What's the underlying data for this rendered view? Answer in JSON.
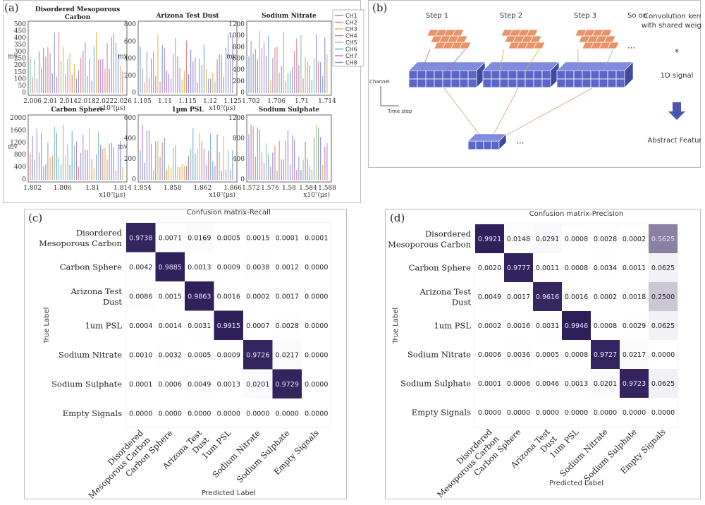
{
  "panels": {
    "a": "(a)",
    "b": "(b)",
    "c": "(c)",
    "d": "(d)"
  },
  "waveforms": {
    "legend": [
      "CH1",
      "CH2",
      "CH3",
      "CH4",
      "CH5",
      "CH6",
      "CH7",
      "CH8"
    ],
    "colors": [
      "#7f7fd6",
      "#e07b7b",
      "#e0b040",
      "#b07ac0",
      "#7ac0a0",
      "#60a0d0",
      "#c070c0",
      "#9090c0"
    ],
    "plots": [
      {
        "title": "Disordered Mesoporous Carbon",
        "ylabel": "mv",
        "yticks": [
          "500",
          "450",
          "400",
          "350",
          "300",
          "250",
          "200",
          "150",
          "100",
          "50",
          "0"
        ],
        "xticks": [
          "2.006",
          "2.01",
          "2.014",
          "2.018",
          "2.022",
          "2.026"
        ],
        "xunit": "x10⁷(µs)"
      },
      {
        "title": "Arizona Test Dust",
        "ylabel": "mv",
        "yticks": [
          "800",
          "600",
          "400",
          "200",
          "0"
        ],
        "xticks": [
          "1.105",
          "1.11",
          "1.115",
          "1.12",
          "1.125"
        ],
        "xunit": "x10⁷(µs)"
      },
      {
        "title": "Sodium Nitrate",
        "ylabel": "mv",
        "yticks": [
          "1200",
          "1000",
          "800",
          "600",
          "400",
          "200",
          "0"
        ],
        "xticks": [
          "1.702",
          "1.706",
          "1.71",
          "1.714"
        ],
        "xunit": ""
      },
      {
        "title": "Carbon Sphere",
        "ylabel": "mv",
        "yticks": [
          "2000",
          "1600",
          "1200",
          "800",
          "400",
          "0"
        ],
        "xticks": [
          "1.802",
          "1.806",
          "1.81",
          "1.814"
        ],
        "xunit": "x10⁷(µs)"
      },
      {
        "title": "1µm PSL",
        "ylabel": "mv",
        "yticks": [
          "600",
          "400",
          "200",
          "0"
        ],
        "xticks": [
          "1.854",
          "1.858",
          "1.862",
          "1.866"
        ],
        "xunit": "x10⁷(µs)"
      },
      {
        "title": "Sodium Sulphate",
        "ylabel": "",
        "yticks": [
          "1200",
          "800",
          "400",
          "0"
        ],
        "xticks": [
          "1.572",
          "1.576",
          "1.58",
          "1.584",
          "1.588"
        ],
        "xunit": "x10⁷(µs)"
      }
    ]
  },
  "cnn": {
    "steps": [
      "Step 1",
      "Step 2",
      "Step 3"
    ],
    "so_on": "So on",
    "dots": "···",
    "star": "*",
    "kernel_label": "Convolution kernel\nwith shared weights",
    "signal_label": "1D signal",
    "abstract_label": "Abstract Feature",
    "channel_label": "Channel",
    "time_label": "Time step"
  },
  "chart_data": [
    {
      "type": "heatmap",
      "title": "Confusion matrix-Recall",
      "xlabel": "Predicted Label",
      "ylabel": "True Label",
      "row_labels": [
        "Disordered\nMesoporous Carbon",
        "Carbon Sphere",
        "Arizona Test\nDust",
        "1um PSL",
        "Sodium Nitrate",
        "Sodium Sulphate",
        "Empty Signals"
      ],
      "col_labels": [
        "Disordered\nMesoporous Carbon",
        "Carbon Sphere",
        "Arizona Test\nDust",
        "1um PSL",
        "Sodium Nitrate",
        "Sodium Sulphate",
        "Empty Signals"
      ],
      "values": [
        [
          "0.9738",
          "0.0071",
          "0.0169",
          "0.0005",
          "0.0015",
          "0.0001",
          "0.0001"
        ],
        [
          "0.0042",
          "0.9885",
          "0.0013",
          "0.0009",
          "0.0038",
          "0.0012",
          "0.0000"
        ],
        [
          "0.0086",
          "0.0015",
          "0.9863",
          "0.0016",
          "0.0002",
          "0.0017",
          "0.0000"
        ],
        [
          "0.0004",
          "0.0014",
          "0.0031",
          "0.9915",
          "0.0007",
          "0.0028",
          "0.0000"
        ],
        [
          "0.0010",
          "0.0032",
          "0.0005",
          "0.0009",
          "0.9726",
          "0.0217",
          "0.0000"
        ],
        [
          "0.0001",
          "0.0006",
          "0.0049",
          "0.0013",
          "0.0201",
          "0.9729",
          "0.0000"
        ],
        [
          "0.0000",
          "0.0000",
          "0.0000",
          "0.0000",
          "0.0000",
          "0.0000",
          "0.0000"
        ]
      ]
    },
    {
      "type": "heatmap",
      "title": "Confusion matrix-Precision",
      "xlabel": "Predicted Label",
      "ylabel": "True Label",
      "row_labels": [
        "Disordered\nMesoporous Carbon",
        "Carbon Sphere",
        "Arizona Test\nDust",
        "1um PSL",
        "Sodium Nitrate",
        "Sodium Sulphate",
        "Empty Signals"
      ],
      "col_labels": [
        "Disordered\nMesoporous Carbon",
        "Carbon Sphere",
        "Arizona Test\nDust",
        "1um PSL",
        "Sodium Nitrate",
        "Sodium Sulphate",
        "Empty Signals"
      ],
      "values": [
        [
          "0.9921",
          "0.0148",
          "0.0291",
          "0.0008",
          "0.0028",
          "0.0002",
          "0.5625"
        ],
        [
          "0.0020",
          "0.9777",
          "0.0011",
          "0.0008",
          "0.0034",
          "0.0011",
          "0.0625"
        ],
        [
          "0.0049",
          "0.0017",
          "0.9616",
          "0.0016",
          "0.0002",
          "0.0018",
          "0.2500"
        ],
        [
          "0.0002",
          "0.0016",
          "0.0031",
          "0.9946",
          "0.0008",
          "0.0029",
          "0.0625"
        ],
        [
          "0.0006",
          "0.0036",
          "0.0005",
          "0.0008",
          "0.9727",
          "0.0217",
          "0.0000"
        ],
        [
          "0.0001",
          "0.0006",
          "0.0046",
          "0.0013",
          "0.0201",
          "0.9723",
          "0.0625"
        ],
        [
          "0.0000",
          "0.0000",
          "0.0000",
          "0.0000",
          "0.0000",
          "0.0000",
          "0.0000"
        ]
      ]
    }
  ]
}
